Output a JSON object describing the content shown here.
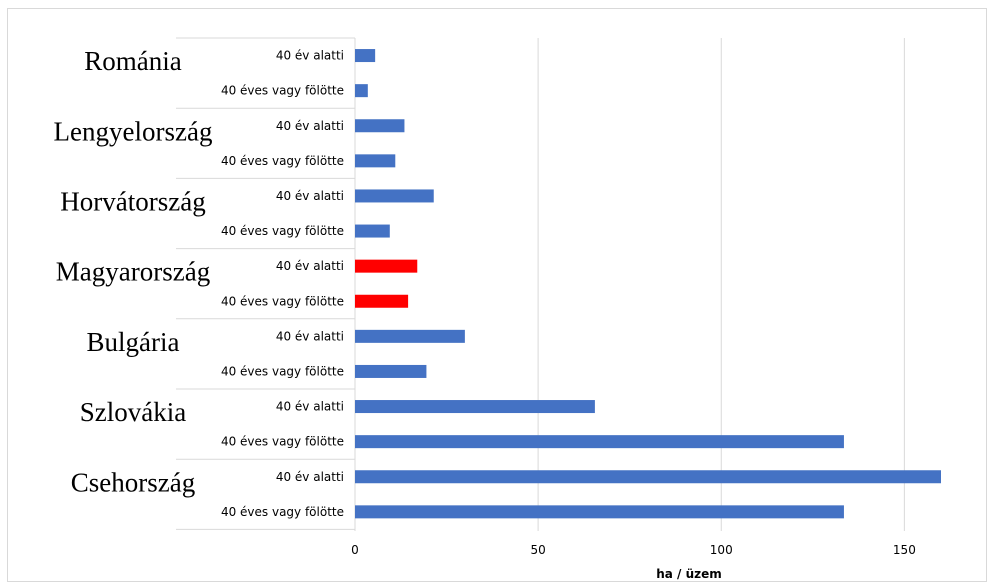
{
  "chart_data": {
    "type": "bar",
    "orientation": "horizontal",
    "xlabel": "ha / üzem",
    "xlim": [
      0,
      160
    ],
    "xticks": [
      0,
      50,
      100,
      150
    ],
    "grid": "vertical",
    "legend": "none",
    "colors": {
      "default": "#4472C4",
      "highlight": "#FF0000"
    },
    "groups": [
      {
        "country": "Románia",
        "highlight": false,
        "bars": [
          {
            "label": "40 év alatti",
            "value": 5.5
          },
          {
            "label": "40 éves vagy fölötte",
            "value": 3.5
          }
        ]
      },
      {
        "country": "Lengyelország",
        "highlight": false,
        "bars": [
          {
            "label": "40 év alatti",
            "value": 13.5
          },
          {
            "label": "40 éves vagy fölötte",
            "value": 11
          }
        ]
      },
      {
        "country": "Horvátország",
        "highlight": false,
        "bars": [
          {
            "label": "40 év alatti",
            "value": 21.5
          },
          {
            "label": "40 éves vagy fölötte",
            "value": 9.5
          }
        ]
      },
      {
        "country": "Magyarország",
        "highlight": true,
        "bars": [
          {
            "label": "40 év alatti",
            "value": 17
          },
          {
            "label": "40 éves vagy fölötte",
            "value": 14.5
          }
        ]
      },
      {
        "country": "Bulgária",
        "highlight": false,
        "bars": [
          {
            "label": "40 év alatti",
            "value": 30
          },
          {
            "label": "40 éves vagy fölötte",
            "value": 19.5
          }
        ]
      },
      {
        "country": "Szlovákia",
        "highlight": false,
        "bars": [
          {
            "label": "40 év alatti",
            "value": 65.5
          },
          {
            "label": "40 éves vagy fölötte",
            "value": 133.5
          }
        ]
      },
      {
        "country": "Csehország",
        "highlight": false,
        "bars": [
          {
            "label": "40 év alatti",
            "value": 160
          },
          {
            "label": "40 éves vagy fölötte",
            "value": 133.5
          }
        ]
      }
    ]
  }
}
